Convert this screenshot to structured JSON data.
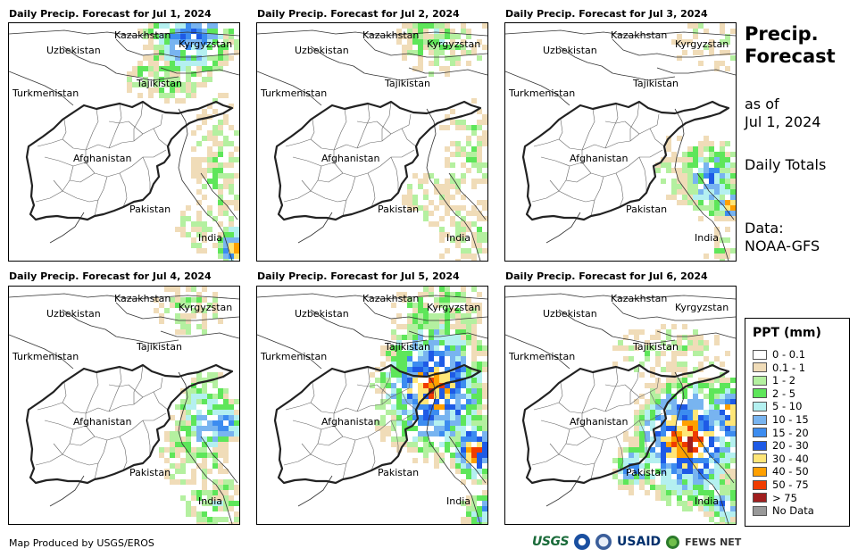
{
  "panels": [
    {
      "title": "Daily Precip. Forecast for Jul 1, 2024",
      "day": 1
    },
    {
      "title": "Daily Precip. Forecast for Jul 2, 2024",
      "day": 2
    },
    {
      "title": "Daily Precip. Forecast for Jul 3, 2024",
      "day": 3
    },
    {
      "title": "Daily Precip. Forecast for Jul 4, 2024",
      "day": 4
    },
    {
      "title": "Daily Precip. Forecast for Jul 5, 2024",
      "day": 5
    },
    {
      "title": "Daily Precip. Forecast for Jul 6, 2024",
      "day": 6
    }
  ],
  "countries": [
    "Kazakhstan",
    "Kyrgyzstan",
    "Uzbekistan",
    "Tajikistan",
    "Turkmenistan",
    "Afghanistan",
    "Pakistan",
    "India"
  ],
  "side": {
    "title_line1": "Precip.",
    "title_line2": "Forecast",
    "asof_line1": "as of",
    "asof_line2": "Jul 1, 2024",
    "totals": "Daily Totals",
    "data_line1": "Data:",
    "data_line2": "NOAA-GFS"
  },
  "legend": {
    "title": "PPT (mm)",
    "items": [
      {
        "label": "0 - 0.1",
        "color": "#ffffff"
      },
      {
        "label": "0.1 - 1",
        "color": "#f0dcb8"
      },
      {
        "label": "1 - 2",
        "color": "#b4f0a0"
      },
      {
        "label": "2 - 5",
        "color": "#5ee65a"
      },
      {
        "label": "5 - 10",
        "color": "#b4f0f0"
      },
      {
        "label": "10 - 15",
        "color": "#78b4f0"
      },
      {
        "label": "15 - 20",
        "color": "#3c8cf0"
      },
      {
        "label": "20 - 30",
        "color": "#1e5ae6"
      },
      {
        "label": "30 - 40",
        "color": "#ffe678"
      },
      {
        "label": "40 - 50",
        "color": "#ffa000"
      },
      {
        "label": "50 - 75",
        "color": "#f03c00"
      },
      {
        "label": "> 75",
        "color": "#a01e1e"
      },
      {
        "label": "No Data",
        "color": "#999999"
      }
    ]
  },
  "footer": "Map Produced by USGS/EROS",
  "logos": {
    "usgs": "USGS",
    "usaid": "USAID",
    "fews": "FEWS NET"
  }
}
